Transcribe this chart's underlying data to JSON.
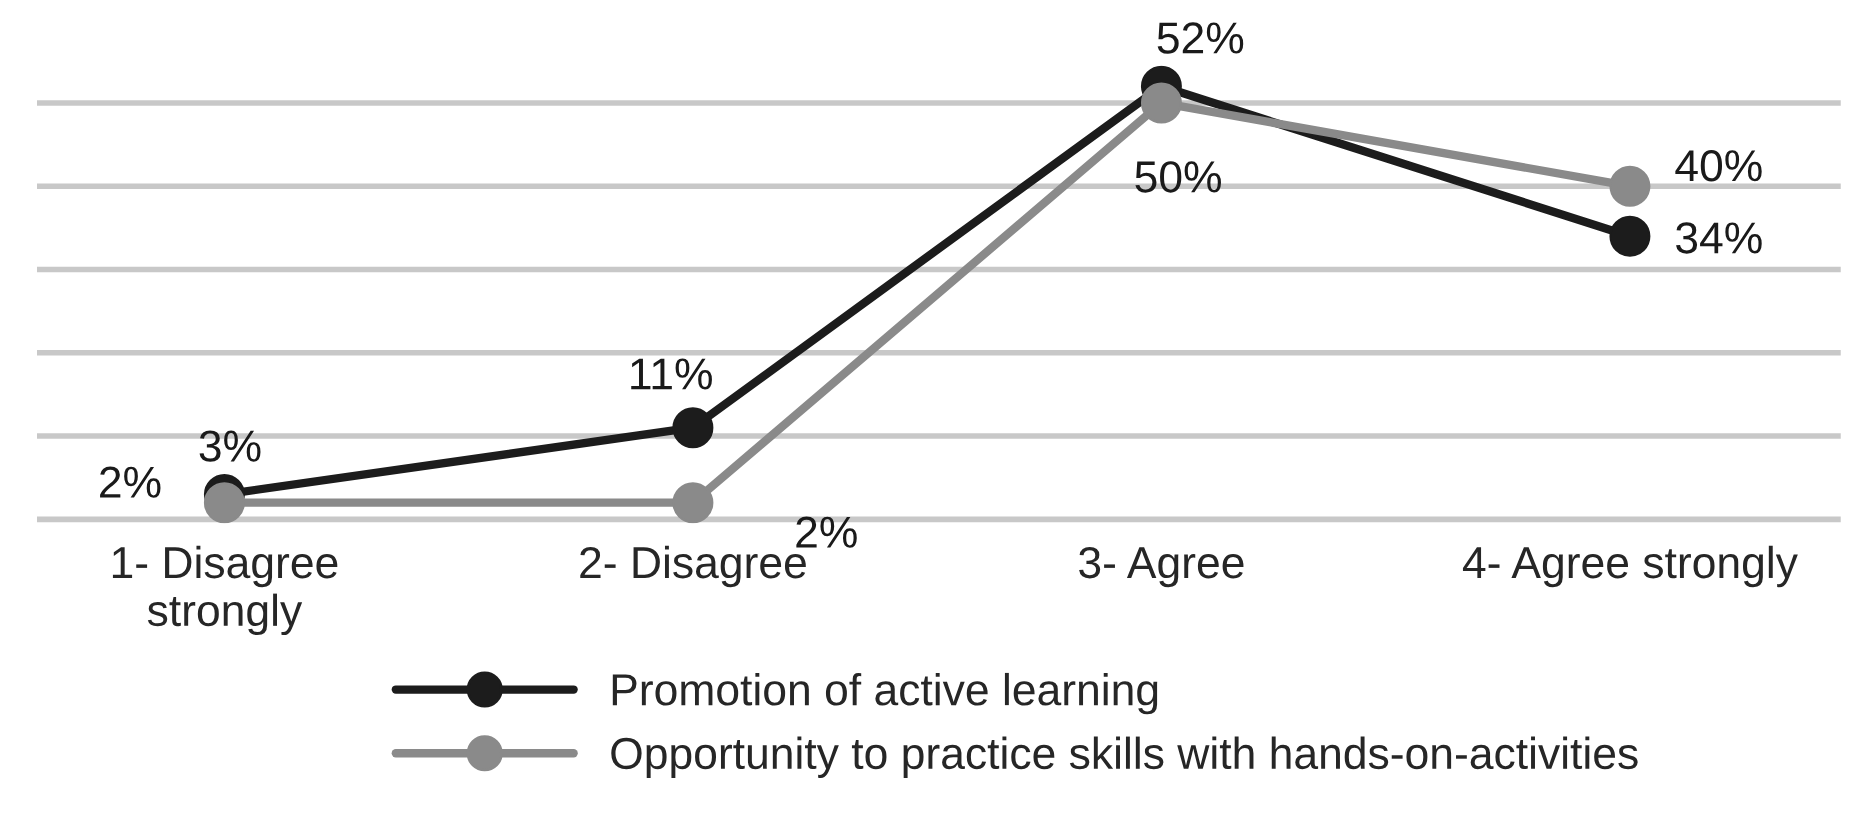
{
  "chart_data": {
    "type": "line",
    "categories": [
      "1- Disagree\nstrongly",
      "2- Disagree",
      "3- Agree",
      "4- Agree strongly"
    ],
    "series": [
      {
        "name": "Promotion of active learning",
        "color": "#1c1c1c",
        "values": [
          3,
          11,
          52,
          34
        ],
        "value_labels": [
          "3%",
          "11%",
          "52%",
          "34%"
        ]
      },
      {
        "name": "Opportunity to practice skills with hands-on-activities",
        "color": "#8a8a8a",
        "values": [
          2,
          2,
          50,
          40
        ],
        "value_labels": [
          "2%",
          "2%",
          "50%",
          "40%"
        ]
      }
    ],
    "tick_labels": "x",
    "grid": "y",
    "marker": "circle",
    "line_style": "solid",
    "legend": "bottom"
  }
}
